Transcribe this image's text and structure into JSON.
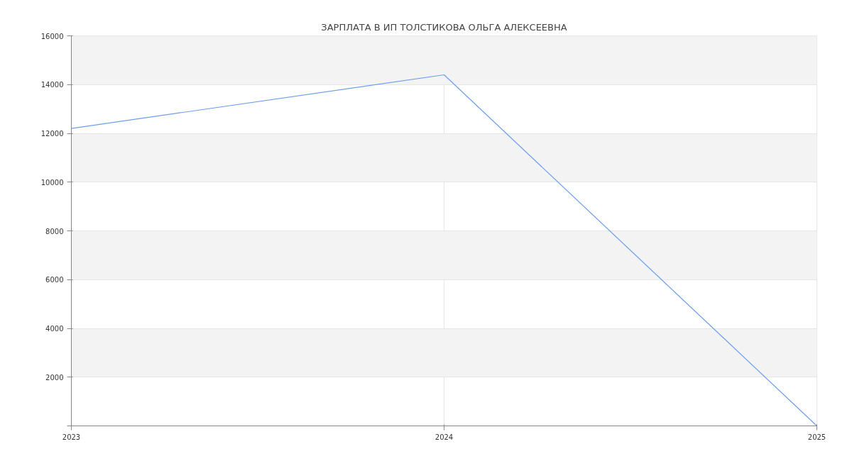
{
  "chart_data": {
    "type": "line",
    "title": "ЗАРПЛАТА В ИП ТОЛСТИКОВА ОЛЬГА АЛЕКСЕЕВНА",
    "x": [
      2023,
      2024,
      2025
    ],
    "series": [
      {
        "color": "#6d9eeb",
        "values": [
          12200,
          14400,
          0
        ]
      }
    ],
    "xlim": [
      2023,
      2025
    ],
    "xticks": [
      2023,
      2024,
      2025
    ],
    "ylim": [
      0,
      16000
    ],
    "yticks": [
      {
        "value": 0,
        "label": null
      },
      2000,
      4000,
      6000,
      8000,
      10000,
      12000,
      14000,
      16000
    ],
    "grid": true,
    "marker": "none",
    "line_style": "solid"
  }
}
